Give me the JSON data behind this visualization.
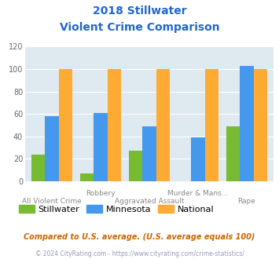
{
  "title_line1": "2018 Stillwater",
  "title_line2": "Violent Crime Comparison",
  "stillwater": [
    24,
    7,
    27,
    0,
    49
  ],
  "minnesota": [
    58,
    61,
    49,
    39,
    103
  ],
  "national": [
    100,
    100,
    100,
    100,
    100
  ],
  "bar_width": 0.28,
  "colors": {
    "stillwater": "#77bb33",
    "minnesota": "#4499ee",
    "national": "#ffaa33"
  },
  "ylim": [
    0,
    120
  ],
  "yticks": [
    0,
    20,
    40,
    60,
    80,
    100,
    120
  ],
  "bg_color": "#deeaf0",
  "title_color": "#2266cc",
  "tick_label_color": "#888888",
  "legend_labels": [
    "Stillwater",
    "Minnesota",
    "National"
  ],
  "stagger_row1": {
    "1": "Robbery",
    "3": "Murder & Mans..."
  },
  "stagger_row2": {
    "0": "All Violent Crime",
    "2": "Aggravated Assault",
    "4": "Rape"
  },
  "footnote1": "Compared to U.S. average. (U.S. average equals 100)",
  "footnote2": "© 2024 CityRating.com - https://www.cityrating.com/crime-statistics/",
  "footnote1_color": "#cc6600",
  "footnote2_color": "#9999bb"
}
